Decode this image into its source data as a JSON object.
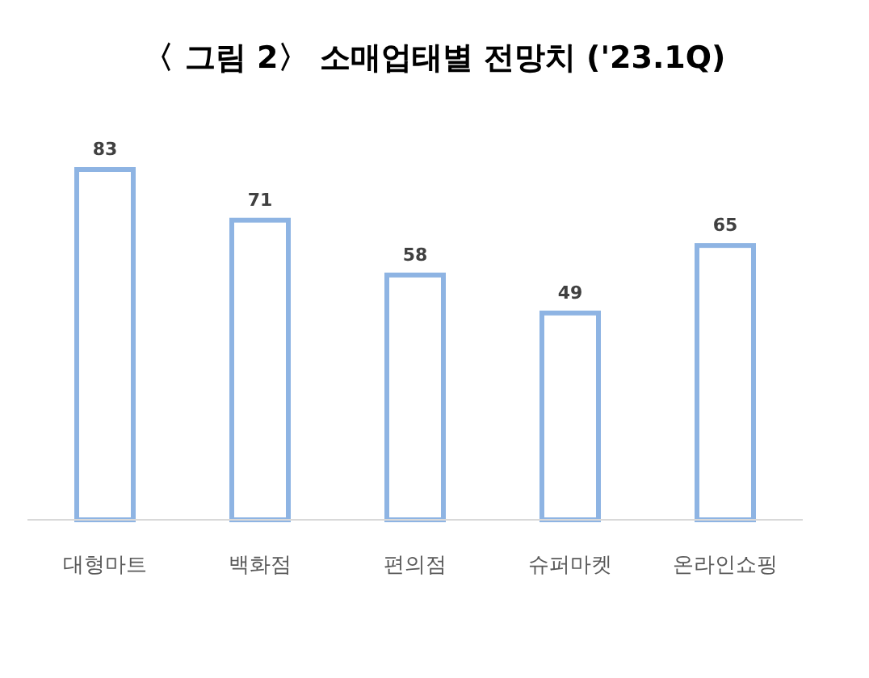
{
  "chart_data": {
    "type": "bar",
    "title": "〈 그림 2〉 소매업태별 전망치 ('23.1Q)",
    "categories": [
      "대형마트",
      "백화점",
      "편의점",
      "슈퍼마켓",
      "온라인쇼핑"
    ],
    "values": [
      83,
      71,
      58,
      49,
      65
    ],
    "color": "#8eb4e3",
    "data_labels": true
  }
}
